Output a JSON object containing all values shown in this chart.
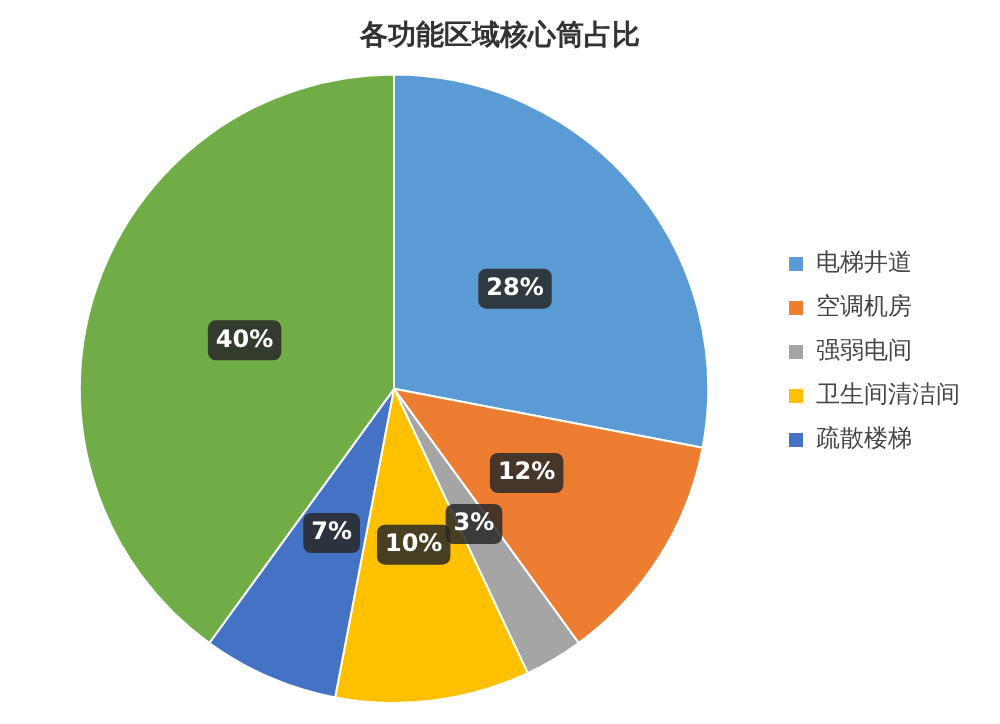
{
  "chart_data": {
    "type": "pie",
    "title": "各功能区域核心筒占比",
    "categories": [
      "电梯井道",
      "空调机房",
      "强弱电间",
      "卫生间清洁间",
      "疏散楼梯",
      null
    ],
    "values": [
      28,
      12,
      3,
      10,
      7,
      40
    ],
    "value_labels": [
      "28%",
      "12%",
      "3%",
      "10%",
      "7%",
      "40%"
    ],
    "colors": [
      "#5b9bd5",
      "#ed7d31",
      "#a5a5a5",
      "#ffc000",
      "#4472c4",
      "#70ad47"
    ],
    "legend": "right"
  }
}
